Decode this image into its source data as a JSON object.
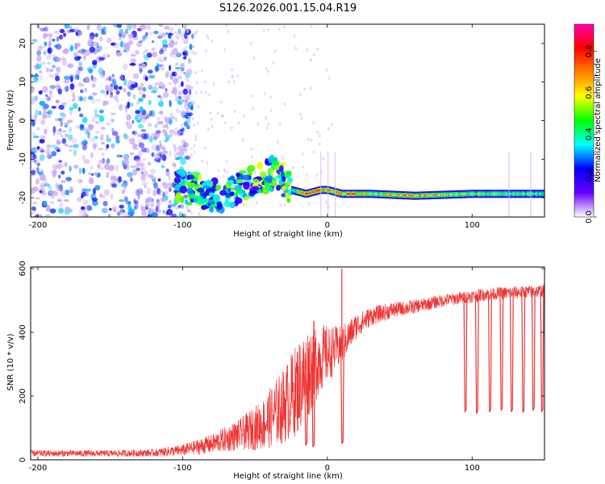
{
  "title": "S126.2026.001.15.04.R19",
  "chart_data": [
    {
      "type": "heatmap",
      "xlabel": "Height of straight line (km)",
      "ylabel": "Frequency (Hz)",
      "xlim": [
        -205,
        150
      ],
      "ylim": [
        -25,
        25
      ],
      "xticks": [
        -200,
        -100,
        0,
        100
      ],
      "yticks": [
        -20,
        -10,
        0,
        10,
        20
      ],
      "colorbar": {
        "label": "Normalized spectral amplitude",
        "range": [
          0,
          0.93
        ],
        "ticks": [
          "0.0",
          "0.2",
          "0.4",
          "0.6",
          "0.8"
        ],
        "colormap": [
          "#ffffff",
          "#6a00ff",
          "#0000ff",
          "#00ffff",
          "#00ff00",
          "#ffff00",
          "#ff8000",
          "#ff0000",
          "#ff00aa"
        ]
      },
      "noise_region_x": [
        -205,
        -105
      ],
      "signal_track": [
        {
          "x": -105,
          "y": -17,
          "amp": 0.45
        },
        {
          "x": -90,
          "y": -18,
          "amp": 0.5
        },
        {
          "x": -75,
          "y": -20,
          "amp": 0.4
        },
        {
          "x": -60,
          "y": -17,
          "amp": 0.45
        },
        {
          "x": -45,
          "y": -15,
          "amp": 0.5
        },
        {
          "x": -35,
          "y": -13,
          "amp": 0.45
        },
        {
          "x": -25,
          "y": -18,
          "amp": 0.55
        },
        {
          "x": -15,
          "y": -19,
          "amp": 0.8
        },
        {
          "x": -5,
          "y": -18,
          "amp": 0.85
        },
        {
          "x": 0,
          "y": -18,
          "amp": 0.7
        },
        {
          "x": 10,
          "y": -19,
          "amp": 0.8
        },
        {
          "x": 30,
          "y": -19,
          "amp": 0.6
        },
        {
          "x": 60,
          "y": -19.5,
          "amp": 0.7
        },
        {
          "x": 100,
          "y": -19,
          "amp": 0.55
        },
        {
          "x": 150,
          "y": -19,
          "amp": 0.5
        }
      ]
    },
    {
      "type": "line",
      "xlabel": "Height of straight line (km)",
      "ylabel": "SNR (10 * v/v)",
      "xlim": [
        -205,
        150
      ],
      "ylim": [
        0,
        605
      ],
      "xticks": [
        -200,
        -100,
        0,
        100
      ],
      "yticks": [
        0,
        200,
        400,
        600
      ],
      "color": "#ee3333",
      "series": [
        {
          "x": [
            -205,
            -180,
            -150,
            -120,
            -100,
            -80,
            -60,
            -45,
            -30,
            -20,
            -10,
            -5,
            0,
            10,
            20,
            30,
            45,
            60,
            80,
            95,
            110,
            130,
            150
          ],
          "y": [
            20,
            20,
            20,
            22,
            30,
            50,
            80,
            110,
            170,
            230,
            300,
            320,
            330,
            360,
            420,
            450,
            470,
            480,
            500,
            510,
            520,
            525,
            530
          ],
          "noise_amp": [
            10,
            10,
            10,
            12,
            18,
            30,
            50,
            80,
            120,
            150,
            140,
            110,
            90,
            60,
            40,
            30,
            25,
            22,
            20,
            20,
            20,
            20,
            20
          ]
        }
      ],
      "spikes_up": [
        {
          "x": 10,
          "y": 600
        }
      ],
      "dips": [
        {
          "x": 10,
          "y": 50
        },
        {
          "x": -10,
          "y": 40
        },
        {
          "x": -15,
          "y": 45
        },
        {
          "x": 95,
          "y": 150
        },
        {
          "x": 103,
          "y": 145
        },
        {
          "x": 112,
          "y": 150
        },
        {
          "x": 120,
          "y": 155
        },
        {
          "x": 127,
          "y": 150
        },
        {
          "x": 135,
          "y": 148
        },
        {
          "x": 142,
          "y": 155
        },
        {
          "x": 148,
          "y": 150
        }
      ]
    }
  ]
}
